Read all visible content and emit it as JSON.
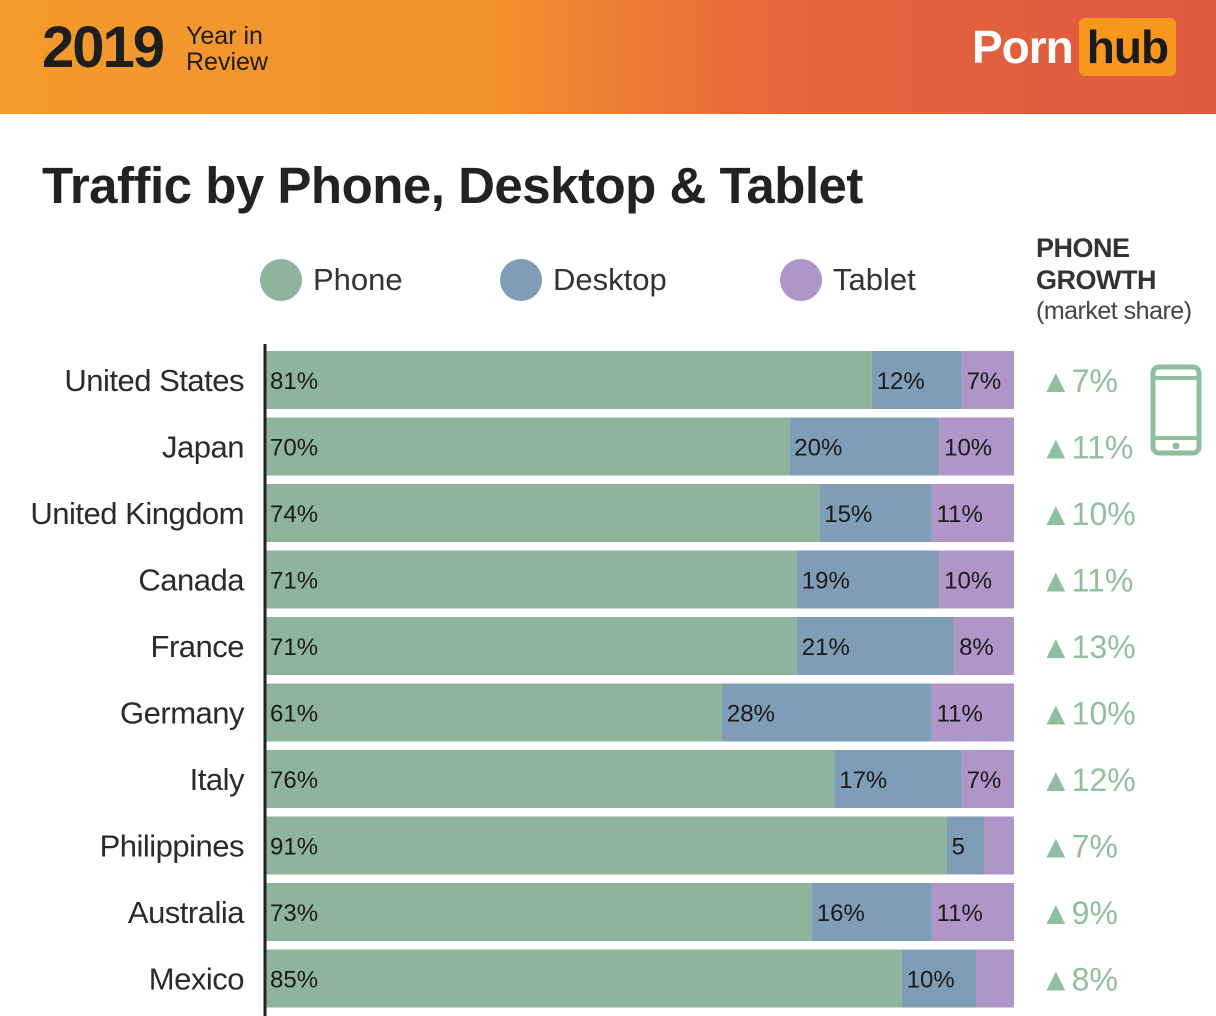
{
  "header": {
    "year": "2019",
    "year_in_review": "Year in Review",
    "logo_part1": "Porn",
    "logo_part2": "hub"
  },
  "colors": {
    "phone": "#8eb49c",
    "desktop": "#7f9db6",
    "tablet": "#b095c8",
    "growth": "#8fbf9c"
  },
  "chart_data": {
    "type": "bar",
    "orientation": "horizontal",
    "stacked": true,
    "title": "Traffic by Phone, Desktop & Tablet",
    "xlim": [
      0,
      100
    ],
    "legend": [
      "Phone",
      "Desktop",
      "Tablet"
    ],
    "legend_position": "top",
    "growth_header": "PHONE GROWTH",
    "growth_subheader": "(market share)",
    "categories": [
      "United States",
      "Japan",
      "United Kingdom",
      "Canada",
      "France",
      "Germany",
      "Italy",
      "Philippines",
      "Australia",
      "Mexico"
    ],
    "series": [
      {
        "name": "Phone",
        "values": [
          81,
          70,
          74,
          71,
          71,
          61,
          76,
          91,
          73,
          85
        ],
        "labels": [
          "81%",
          "70%",
          "74%",
          "71%",
          "71%",
          "61%",
          "76%",
          "91%",
          "73%",
          "85%"
        ]
      },
      {
        "name": "Desktop",
        "values": [
          12,
          20,
          15,
          19,
          21,
          28,
          17,
          5,
          16,
          10
        ],
        "labels": [
          "12%",
          "20%",
          "15%",
          "19%",
          "21%",
          "28%",
          "17%",
          "5",
          "16%",
          "10%"
        ]
      },
      {
        "name": "Tablet",
        "values": [
          7,
          10,
          11,
          10,
          8,
          11,
          7,
          4,
          11,
          5
        ],
        "labels": [
          "7%",
          "10%",
          "11%",
          "10%",
          "8%",
          "11%",
          "7%",
          "",
          "11%",
          ""
        ]
      }
    ],
    "phone_growth": [
      "▲7%",
      "▲11%",
      "▲10%",
      "▲11%",
      "▲13%",
      "▲10%",
      "▲12%",
      "▲7%",
      "▲9%",
      "▲8%"
    ]
  }
}
